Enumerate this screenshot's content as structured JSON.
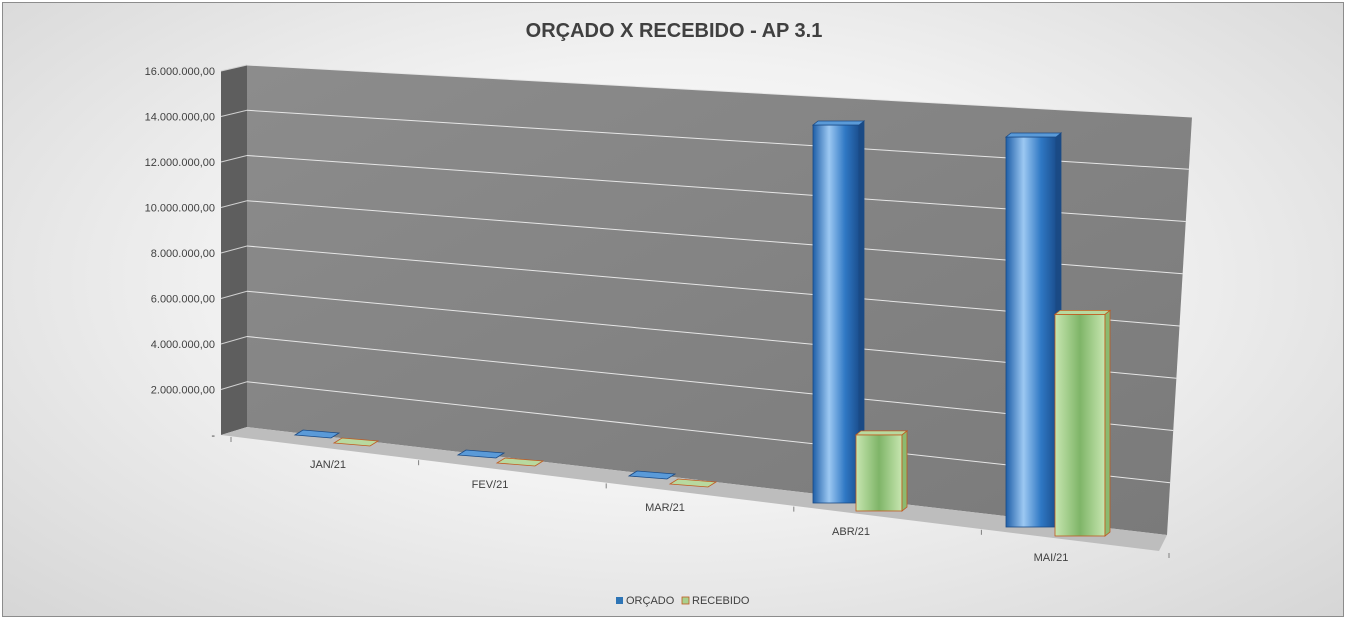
{
  "chart_data": {
    "type": "bar",
    "title": "ORÇADO X RECEBIDO - AP 3.1",
    "categories": [
      "JAN/21",
      "FEV/21",
      "MAR/21",
      "ABR/21",
      "MAI/21"
    ],
    "series": [
      {
        "name": "ORÇADO",
        "values": [
          0,
          0,
          0,
          13900000,
          13900000
        ],
        "color": "#2e75b6"
      },
      {
        "name": "RECEBIDO",
        "values": [
          0,
          0,
          0,
          2800000,
          7900000
        ],
        "color": "#a9d08e"
      }
    ],
    "ylim": [
      0,
      16000000
    ],
    "ytick_labels": [
      "-",
      "2.000.000,00",
      "4.000.000,00",
      "6.000.000,00",
      "8.000.000,00",
      "10.000.000,00",
      "12.000.000,00",
      "14.000.000,00",
      "16.000.000,00"
    ],
    "grid": true,
    "legend_position": "bottom",
    "style": "3d-perspective"
  }
}
